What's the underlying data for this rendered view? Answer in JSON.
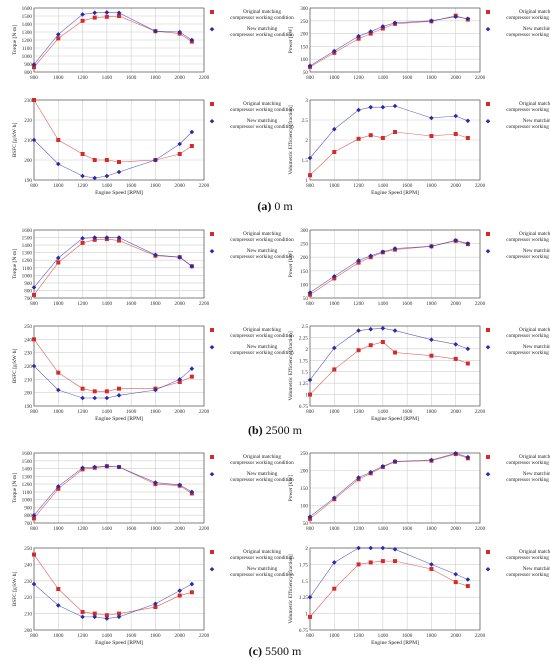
{
  "panels": [
    {
      "caption_label": "(a)",
      "caption_text": "0 m"
    },
    {
      "caption_label": "(b)",
      "caption_text": "2500 m"
    },
    {
      "caption_label": "(c)",
      "caption_text": "5500 m"
    }
  ],
  "colors": {
    "original": "#d42a2a",
    "new": "#2a2aa8"
  },
  "legend": {
    "original": "Original matching compressor working condition",
    "new": "New matching compressor working condition"
  },
  "chart_data": [
    {
      "type": "line",
      "panel": 0,
      "ylabel": "Torque [N·m]",
      "xlabel": "",
      "xlim": [
        800,
        2200
      ],
      "ylim": [
        800,
        1600
      ],
      "xticks": [
        800,
        1000,
        1200,
        1400,
        1600,
        1800,
        2000,
        2200
      ],
      "yticks": [
        800,
        900,
        1000,
        1100,
        1200,
        1300,
        1400,
        1500,
        1600
      ],
      "x": [
        800,
        1000,
        1200,
        1300,
        1400,
        1500,
        1800,
        2000,
        2100
      ],
      "series": [
        {
          "name": "Original matching compressor working condition",
          "values": [
            860,
            1220,
            1440,
            1480,
            1490,
            1500,
            1310,
            1280,
            1180
          ]
        },
        {
          "name": "New matching compressor working condition",
          "values": [
            895,
            1270,
            1520,
            1540,
            1545,
            1540,
            1310,
            1300,
            1200
          ]
        }
      ]
    },
    {
      "type": "line",
      "panel": 0,
      "ylabel": "Power [kW]",
      "xlabel": "",
      "xlim": [
        800,
        2200
      ],
      "ylim": [
        50,
        300
      ],
      "xticks": [
        800,
        1000,
        1200,
        1400,
        1600,
        1800,
        2000,
        2200
      ],
      "yticks": [
        50,
        100,
        150,
        200,
        250,
        300
      ],
      "x": [
        800,
        1000,
        1200,
        1300,
        1400,
        1500,
        1800,
        2000,
        2100
      ],
      "series": [
        {
          "name": "Original matching compressor working condition",
          "values": [
            70,
            125,
            180,
            200,
            220,
            238,
            248,
            270,
            255
          ]
        },
        {
          "name": "New matching compressor working condition",
          "values": [
            74,
            132,
            190,
            208,
            228,
            242,
            250,
            266,
            258
          ]
        }
      ]
    },
    {
      "type": "line",
      "panel": 0,
      "ylabel": "BSFC [g/kW·h]",
      "xlabel": "Engine Speed [RPM]",
      "xlim": [
        800,
        2200
      ],
      "ylim": [
        190,
        230
      ],
      "xticks": [
        800,
        1000,
        1200,
        1400,
        1600,
        1800,
        2000,
        2200
      ],
      "yticks": [
        190,
        200,
        210,
        220,
        230
      ],
      "x": [
        800,
        1000,
        1200,
        1300,
        1400,
        1500,
        1800,
        2000,
        2100
      ],
      "series": [
        {
          "name": "Original matching compressor working condition",
          "values": [
            230,
            210,
            203,
            200,
            200,
            199,
            200,
            203,
            207
          ]
        },
        {
          "name": "New matching compressor working condition",
          "values": [
            210,
            198,
            192,
            191,
            192,
            194,
            200,
            208,
            214
          ]
        }
      ]
    },
    {
      "type": "line",
      "panel": 0,
      "ylabel": "Volumetric Efficiency [fraction]",
      "xlabel": "Engine Speed [RPM]",
      "xlim": [
        800,
        2200
      ],
      "ylim": [
        1.0,
        3.0
      ],
      "xticks": [
        800,
        1000,
        1200,
        1400,
        1600,
        1800,
        2000,
        2200
      ],
      "yticks": [
        1.0,
        1.5,
        2.0,
        2.5,
        3.0
      ],
      "x": [
        800,
        1000,
        1200,
        1300,
        1400,
        1500,
        1800,
        2000,
        2100
      ],
      "series": [
        {
          "name": "Original matching compressor working condition",
          "values": [
            1.12,
            1.7,
            2.03,
            2.12,
            2.05,
            2.2,
            2.1,
            2.15,
            2.05
          ]
        },
        {
          "name": "New matching compressor working condition",
          "values": [
            1.55,
            2.27,
            2.75,
            2.82,
            2.82,
            2.85,
            2.55,
            2.6,
            2.48
          ]
        }
      ]
    },
    {
      "type": "line",
      "panel": 1,
      "ylabel": "Torque [N·m]",
      "xlabel": "",
      "xlim": [
        800,
        2200
      ],
      "ylim": [
        700,
        1600
      ],
      "xticks": [
        800,
        1000,
        1200,
        1400,
        1600,
        1800,
        2000,
        2200
      ],
      "yticks": [
        700,
        800,
        900,
        1000,
        1100,
        1200,
        1300,
        1400,
        1500,
        1600
      ],
      "x": [
        800,
        1000,
        1200,
        1300,
        1400,
        1500,
        1800,
        2000,
        2100
      ],
      "series": [
        {
          "name": "Original matching compressor working condition",
          "values": [
            740,
            1170,
            1430,
            1470,
            1480,
            1460,
            1260,
            1240,
            1120
          ]
        },
        {
          "name": "New matching compressor working condition",
          "values": [
            840,
            1230,
            1490,
            1500,
            1500,
            1500,
            1270,
            1240,
            1120
          ]
        }
      ]
    },
    {
      "type": "line",
      "panel": 1,
      "ylabel": "Power [kW]",
      "xlabel": "",
      "xlim": [
        800,
        2200
      ],
      "ylim": [
        50,
        300
      ],
      "xticks": [
        800,
        1000,
        1200,
        1400,
        1600,
        1800,
        2000,
        2200
      ],
      "yticks": [
        50,
        100,
        150,
        200,
        250,
        300
      ],
      "x": [
        800,
        1000,
        1200,
        1300,
        1400,
        1500,
        1800,
        2000,
        2100
      ],
      "series": [
        {
          "name": "Original matching compressor working condition",
          "values": [
            62,
            122,
            180,
            200,
            218,
            228,
            240,
            260,
            248
          ]
        },
        {
          "name": "New matching compressor working condition",
          "values": [
            70,
            130,
            188,
            205,
            220,
            232,
            240,
            262,
            250
          ]
        }
      ]
    },
    {
      "type": "line",
      "panel": 1,
      "ylabel": "BSFC [g/kW·h]",
      "xlabel": "Engine Speed [RPM]",
      "xlim": [
        800,
        2200
      ],
      "ylim": [
        190,
        250
      ],
      "xticks": [
        800,
        1000,
        1200,
        1400,
        1600,
        1800,
        2000,
        2200
      ],
      "yticks": [
        190,
        200,
        210,
        220,
        230,
        240,
        250
      ],
      "x": [
        800,
        1000,
        1200,
        1300,
        1400,
        1500,
        1800,
        2000,
        2100
      ],
      "series": [
        {
          "name": "Original matching compressor working condition",
          "values": [
            240,
            215,
            203,
            201,
            201,
            203,
            203,
            208,
            212
          ]
        },
        {
          "name": "New matching compressor working condition",
          "values": [
            220,
            202,
            196,
            196,
            196,
            198,
            202,
            210,
            218
          ]
        }
      ]
    },
    {
      "type": "line",
      "panel": 1,
      "ylabel": "Volumetric Efficiency [fraction]",
      "xlabel": "Engine Speed [RPM]",
      "xlim": [
        800,
        2200
      ],
      "ylim": [
        0.75,
        2.5
      ],
      "xticks": [
        800,
        1000,
        1200,
        1400,
        1600,
        1800,
        2000,
        2200
      ],
      "yticks": [
        0.75,
        1.0,
        1.25,
        1.5,
        1.75,
        2.0,
        2.25,
        2.5
      ],
      "x": [
        800,
        1000,
        1200,
        1300,
        1400,
        1500,
        1800,
        2000,
        2100
      ],
      "series": [
        {
          "name": "Original matching compressor working condition",
          "values": [
            1.0,
            1.55,
            1.97,
            2.08,
            2.15,
            1.92,
            1.85,
            1.78,
            1.68
          ]
        },
        {
          "name": "New matching compressor working condition",
          "values": [
            1.32,
            2.02,
            2.4,
            2.43,
            2.45,
            2.4,
            2.2,
            2.1,
            2.0
          ]
        }
      ]
    },
    {
      "type": "line",
      "panel": 2,
      "ylabel": "Torque [N·m]",
      "xlabel": "",
      "xlim": [
        800,
        2200
      ],
      "ylim": [
        700,
        1600
      ],
      "xticks": [
        800,
        1000,
        1200,
        1400,
        1600,
        1800,
        2000,
        2200
      ],
      "yticks": [
        700,
        800,
        900,
        1000,
        1100,
        1200,
        1300,
        1400,
        1500,
        1600
      ],
      "x": [
        800,
        1000,
        1200,
        1300,
        1400,
        1500,
        1800,
        2000,
        2100
      ],
      "series": [
        {
          "name": "Original matching compressor working condition",
          "values": [
            760,
            1140,
            1390,
            1410,
            1430,
            1420,
            1200,
            1180,
            1080
          ]
        },
        {
          "name": "New matching compressor working condition",
          "values": [
            800,
            1170,
            1410,
            1420,
            1430,
            1420,
            1220,
            1190,
            1100
          ]
        }
      ]
    },
    {
      "type": "line",
      "panel": 2,
      "ylabel": "Power [kW]",
      "xlabel": "",
      "xlim": [
        800,
        2200
      ],
      "ylim": [
        50,
        250
      ],
      "xticks": [
        800,
        1000,
        1200,
        1400,
        1600,
        1800,
        2000,
        2200
      ],
      "yticks": [
        50,
        100,
        150,
        200,
        250
      ],
      "x": [
        800,
        1000,
        1200,
        1300,
        1400,
        1500,
        1800,
        2000,
        2100
      ],
      "series": [
        {
          "name": "Original matching compressor working condition",
          "values": [
            62,
            118,
            175,
            192,
            210,
            225,
            228,
            247,
            235
          ]
        },
        {
          "name": "New matching compressor working condition",
          "values": [
            68,
            122,
            180,
            195,
            212,
            226,
            230,
            249,
            238
          ]
        }
      ]
    },
    {
      "type": "line",
      "panel": 2,
      "ylabel": "BSFC [g/kW·h]",
      "xlabel": "Engine Speed [RPM]",
      "xlim": [
        800,
        2200
      ],
      "ylim": [
        200,
        250
      ],
      "xticks": [
        800,
        1000,
        1200,
        1400,
        1600,
        1800,
        2000,
        2200
      ],
      "yticks": [
        200,
        210,
        220,
        230,
        240,
        250
      ],
      "x": [
        800,
        1000,
        1200,
        1300,
        1400,
        1500,
        1800,
        2000,
        2100
      ],
      "series": [
        {
          "name": "Original matching compressor working condition",
          "values": [
            246,
            225,
            211,
            210,
            209,
            210,
            214,
            221,
            223
          ]
        },
        {
          "name": "New matching compressor working condition",
          "values": [
            228,
            215,
            208,
            208,
            207,
            208,
            216,
            224,
            228
          ]
        }
      ]
    },
    {
      "type": "line",
      "panel": 2,
      "ylabel": "Volumetric Efficiency [fraction]",
      "xlabel": "Engine Speed [RPM]",
      "xlim": [
        800,
        2200
      ],
      "ylim": [
        0.75,
        2.0
      ],
      "xticks": [
        800,
        1000,
        1200,
        1400,
        1600,
        1800,
        2000,
        2200
      ],
      "yticks": [
        0.75,
        1.0,
        1.25,
        1.5,
        1.75,
        2.0
      ],
      "x": [
        800,
        1000,
        1200,
        1300,
        1400,
        1500,
        1800,
        2000,
        2100
      ],
      "series": [
        {
          "name": "Original matching compressor working condition",
          "values": [
            0.95,
            1.38,
            1.75,
            1.78,
            1.8,
            1.8,
            1.68,
            1.48,
            1.42
          ]
        },
        {
          "name": "New matching compressor working condition",
          "values": [
            1.25,
            1.78,
            2.0,
            2.0,
            2.0,
            1.98,
            1.75,
            1.6,
            1.52
          ]
        }
      ]
    }
  ]
}
